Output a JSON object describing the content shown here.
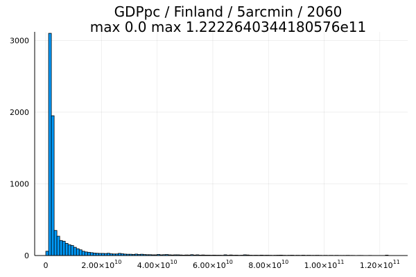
{
  "chart_data": {
    "type": "bar",
    "title_line1": "GDPpc / Finland / 5arcmin / 2060",
    "title_line2": "max 0.0  max 1.2222640344180576e11",
    "xlim": [
      -4000000000,
      130000000000
    ],
    "ylim": [
      0,
      3120
    ],
    "bin_width": 1000000000,
    "x_ticks": [
      {
        "value": 0,
        "mantissa": "0",
        "exp": ""
      },
      {
        "value": 20000000000,
        "mantissa": "2.00×10",
        "exp": "10"
      },
      {
        "value": 40000000000,
        "mantissa": "4.00×10",
        "exp": "10"
      },
      {
        "value": 60000000000,
        "mantissa": "6.00×10",
        "exp": "10"
      },
      {
        "value": 80000000000,
        "mantissa": "8.00×10",
        "exp": "10"
      },
      {
        "value": 100000000000,
        "mantissa": "1.00×10",
        "exp": "11"
      },
      {
        "value": 120000000000,
        "mantissa": "1.20×10",
        "exp": "11"
      }
    ],
    "y_ticks": [
      {
        "value": 0,
        "label": "0"
      },
      {
        "value": 1000,
        "label": "1000"
      },
      {
        "value": 2000,
        "label": "2000"
      },
      {
        "value": 3000,
        "label": "3000"
      }
    ],
    "series": [
      {
        "bin_starts": [
          0,
          1000000000,
          2000000000,
          3000000000,
          4000000000,
          5000000000,
          6000000000,
          7000000000,
          8000000000,
          9000000000,
          10000000000,
          11000000000,
          12000000000,
          13000000000,
          14000000000,
          15000000000,
          16000000000,
          17000000000,
          18000000000,
          19000000000,
          20000000000,
          21000000000,
          22000000000,
          23000000000,
          24000000000,
          25000000000,
          26000000000,
          27000000000,
          28000000000,
          29000000000,
          30000000000,
          31000000000,
          32000000000,
          33000000000,
          34000000000,
          35000000000,
          36000000000,
          37000000000,
          38000000000,
          39000000000,
          40000000000,
          41000000000,
          42000000000,
          43000000000,
          44000000000,
          45000000000,
          46000000000,
          47000000000,
          48000000000,
          49000000000,
          50000000000,
          51000000000,
          52000000000,
          53000000000,
          54000000000,
          55000000000,
          56000000000,
          57000000000,
          58000000000,
          59000000000,
          60000000000,
          61000000000,
          62000000000,
          63000000000,
          64000000000,
          65000000000,
          66000000000,
          67000000000,
          68000000000,
          69000000000,
          70000000000,
          71000000000,
          72000000000,
          73000000000,
          74000000000,
          75000000000,
          76000000000,
          77000000000,
          78000000000,
          79000000000,
          80000000000,
          81000000000,
          82000000000,
          83000000000,
          84000000000,
          85000000000,
          86000000000,
          87000000000,
          88000000000,
          89000000000,
          90000000000,
          91000000000,
          92000000000,
          93000000000,
          94000000000,
          95000000000,
          96000000000,
          97000000000,
          98000000000,
          99000000000,
          100000000000,
          101000000000,
          102000000000,
          103000000000,
          104000000000,
          105000000000,
          106000000000,
          107000000000,
          108000000000,
          109000000000,
          110000000000,
          111000000000,
          112000000000,
          113000000000,
          114000000000,
          115000000000,
          116000000000,
          117000000000,
          118000000000,
          119000000000,
          120000000000,
          121000000000,
          122000000000
        ],
        "values": [
          60,
          3100,
          1950,
          350,
          270,
          210,
          200,
          170,
          150,
          140,
          115,
          95,
          80,
          60,
          50,
          45,
          40,
          35,
          32,
          30,
          30,
          28,
          32,
          25,
          22,
          22,
          30,
          25,
          20,
          18,
          18,
          15,
          20,
          15,
          18,
          14,
          12,
          12,
          10,
          10,
          15,
          10,
          12,
          14,
          10,
          8,
          10,
          10,
          8,
          6,
          8,
          7,
          12,
          7,
          10,
          6,
          8,
          6,
          6,
          5,
          6,
          5,
          5,
          4,
          10,
          5,
          8,
          5,
          6,
          4,
          5,
          10,
          8,
          5,
          4,
          5,
          4,
          6,
          4,
          5,
          4,
          3,
          4,
          5,
          6,
          4,
          3,
          4,
          5,
          3,
          4,
          3,
          5,
          3,
          4,
          3,
          3,
          4,
          3,
          2,
          3,
          2,
          3,
          2,
          3,
          2,
          2,
          2,
          3,
          2,
          2,
          1,
          2,
          2,
          1,
          1,
          2,
          1,
          1,
          1,
          1,
          1,
          6
        ]
      }
    ]
  }
}
